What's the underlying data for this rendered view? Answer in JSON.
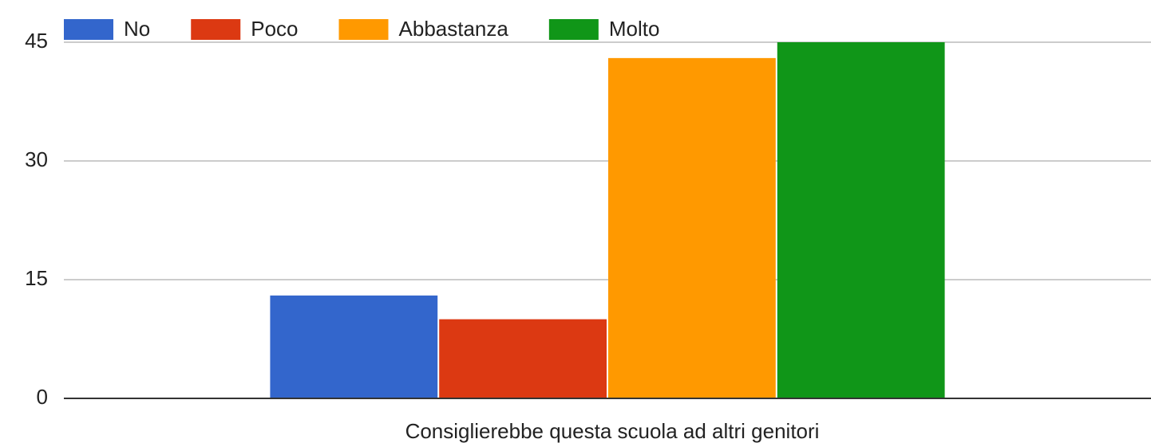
{
  "chart_data": {
    "type": "bar",
    "x_label": "Consiglierebbe questa scuola ad altri genitori",
    "categories": [
      null
    ],
    "series": [
      {
        "name": "No",
        "color": "#3366cc",
        "values": [
          13
        ]
      },
      {
        "name": "Poco",
        "color": "#dc3912",
        "values": [
          10
        ]
      },
      {
        "name": "Abbastanza",
        "color": "#ff9900",
        "values": [
          43
        ]
      },
      {
        "name": "Molto",
        "color": "#109618",
        "values": [
          45
        ]
      }
    ],
    "ylim": [
      0,
      45
    ],
    "yticks": [
      0,
      15,
      30,
      45
    ],
    "grid": true,
    "legend": "top"
  }
}
